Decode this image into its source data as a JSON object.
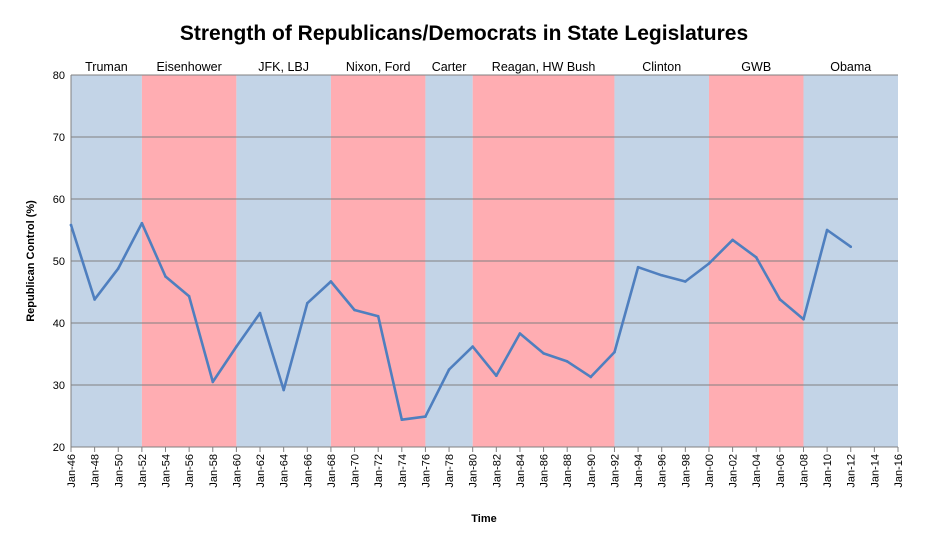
{
  "chart_data": {
    "type": "line",
    "title": "Strength of Republicans/Democrats in State Legislatures",
    "xlabel": "Time",
    "ylabel": "Republican Control (%)",
    "ylim": [
      20,
      80
    ],
    "yticks": [
      20,
      30,
      40,
      50,
      60,
      70,
      80
    ],
    "xlim": [
      1946,
      2016
    ],
    "x_tick_labels": [
      "Jan-46",
      "Jan-48",
      "Jan-50",
      "Jan-52",
      "Jan-54",
      "Jan-56",
      "Jan-58",
      "Jan-60",
      "Jan-62",
      "Jan-64",
      "Jan-66",
      "Jan-68",
      "Jan-70",
      "Jan-72",
      "Jan-74",
      "Jan-76",
      "Jan-78",
      "Jan-80",
      "Jan-82",
      "Jan-84",
      "Jan-86",
      "Jan-88",
      "Jan-90",
      "Jan-92",
      "Jan-94",
      "Jan-96",
      "Jan-98",
      "Jan-00",
      "Jan-02",
      "Jan-04",
      "Jan-06",
      "Jan-08",
      "Jan-10",
      "Jan-12",
      "Jan-14",
      "Jan-16"
    ],
    "grid": true,
    "legend": "none",
    "eras": [
      {
        "label": "Truman",
        "start": 1946,
        "end": 1952,
        "party": "D"
      },
      {
        "label": "Eisenhower",
        "start": 1952,
        "end": 1960,
        "party": "R"
      },
      {
        "label": "JFK, LBJ",
        "start": 1960,
        "end": 1968,
        "party": "D"
      },
      {
        "label": "Nixon, Ford",
        "start": 1968,
        "end": 1976,
        "party": "R"
      },
      {
        "label": "Carter",
        "start": 1976,
        "end": 1980,
        "party": "D"
      },
      {
        "label": "Reagan, HW Bush",
        "start": 1980,
        "end": 1992,
        "party": "R"
      },
      {
        "label": "Clinton",
        "start": 1992,
        "end": 2000,
        "party": "D"
      },
      {
        "label": "GWB",
        "start": 2000,
        "end": 2008,
        "party": "R"
      },
      {
        "label": "Obama",
        "start": 2008,
        "end": 2016,
        "party": "D"
      }
    ],
    "colors": {
      "D": "#c3d4e7",
      "R": "#ffadb2",
      "line": "#4f7fbf",
      "grid": "#808080"
    },
    "series": [
      {
        "x": [
          1946,
          1948,
          1950,
          1952,
          1954,
          1956,
          1958,
          1960,
          1962,
          1964,
          1966,
          1968,
          1970,
          1972,
          1974,
          1976,
          1978,
          1980,
          1982,
          1984,
          1986,
          1988,
          1990,
          1992,
          1994,
          1996,
          1998,
          2000,
          2002,
          2004,
          2006,
          2008,
          2010,
          2012
        ],
        "values": [
          55.8,
          43.8,
          48.8,
          56.1,
          47.5,
          44.3,
          30.5,
          36.2,
          41.6,
          29.2,
          43.2,
          46.7,
          42.1,
          41.1,
          24.4,
          24.9,
          32.5,
          36.2,
          31.5,
          38.3,
          35.1,
          33.8,
          31.3,
          35.3,
          49.0,
          47.7,
          46.7,
          49.6,
          53.4,
          50.6,
          43.8,
          40.6,
          55.0,
          52.3
        ]
      }
    ]
  }
}
